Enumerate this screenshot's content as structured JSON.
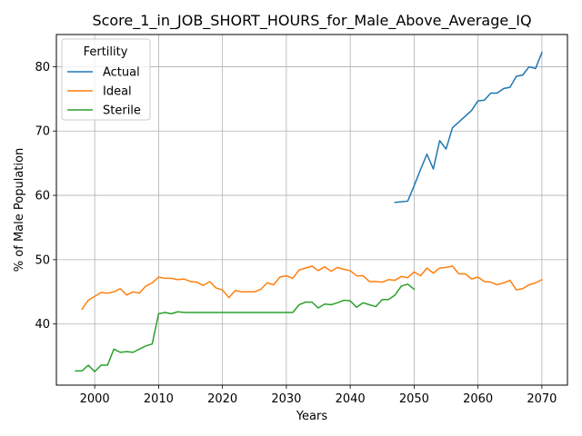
{
  "chart_data": {
    "type": "line",
    "title": "Score_1_in_JOB_SHORT_HOURS_for_Male_Above_Average_IQ",
    "xlabel": "Years",
    "ylabel": "% of Male Population",
    "xlim": [
      1994,
      2074
    ],
    "ylim": [
      30.5,
      85
    ],
    "xticks": [
      2000,
      2010,
      2020,
      2030,
      2040,
      2050,
      2060,
      2070
    ],
    "yticks": [
      40,
      50,
      60,
      70,
      80
    ],
    "grid": true,
    "legend": {
      "title": "Fertility",
      "placement": "top-left"
    },
    "series": [
      {
        "name": "Actual",
        "color": "#1f77b4",
        "x": [
          2047,
          2048,
          2049,
          2050,
          2051,
          2052,
          2053,
          2054,
          2055,
          2056,
          2057,
          2058,
          2059,
          2060,
          2061,
          2062,
          2063,
          2064,
          2065,
          2066,
          2067,
          2068,
          2069,
          2070
        ],
        "y": [
          58.9,
          59.0,
          59.1,
          61.5,
          64.0,
          66.4,
          64.1,
          68.5,
          67.2,
          70.5,
          71.4,
          72.3,
          73.2,
          74.7,
          74.8,
          75.9,
          75.9,
          76.6,
          76.8,
          78.5,
          78.7,
          80.0,
          79.7,
          82.2
        ]
      },
      {
        "name": "Ideal",
        "color": "#ff7f0e",
        "x": [
          1998,
          1999,
          2000,
          2001,
          2002,
          2003,
          2004,
          2005,
          2006,
          2007,
          2008,
          2009,
          2010,
          2011,
          2012,
          2013,
          2014,
          2015,
          2016,
          2017,
          2018,
          2019,
          2020,
          2021,
          2022,
          2023,
          2024,
          2025,
          2026,
          2027,
          2028,
          2029,
          2030,
          2031,
          2032,
          2033,
          2034,
          2035,
          2036,
          2037,
          2038,
          2039,
          2040,
          2041,
          2042,
          2043,
          2044,
          2045,
          2046,
          2047,
          2048,
          2049,
          2050,
          2051,
          2052,
          2053,
          2054,
          2055,
          2056,
          2057,
          2058,
          2059,
          2060,
          2061,
          2062,
          2063,
          2064,
          2065,
          2066,
          2067,
          2068,
          2069,
          2070
        ],
        "y": [
          42.3,
          43.7,
          44.3,
          44.9,
          44.8,
          45.0,
          45.5,
          44.5,
          45.0,
          44.8,
          45.9,
          46.4,
          47.3,
          47.1,
          47.1,
          46.9,
          47.0,
          46.6,
          46.5,
          46.0,
          46.6,
          45.6,
          45.3,
          44.1,
          45.2,
          45.0,
          45.0,
          45.0,
          45.4,
          46.4,
          46.1,
          47.3,
          47.5,
          47.1,
          48.4,
          48.7,
          49.0,
          48.3,
          48.9,
          48.2,
          48.8,
          48.5,
          48.3,
          47.5,
          47.5,
          46.6,
          46.6,
          46.5,
          46.9,
          46.8,
          47.4,
          47.2,
          48.1,
          47.5,
          48.7,
          47.9,
          48.7,
          48.8,
          49.0,
          47.8,
          47.8,
          47.0,
          47.3,
          46.6,
          46.5,
          46.1,
          46.4,
          46.8,
          45.3,
          45.5,
          46.1,
          46.4,
          46.9
        ]
      },
      {
        "name": "Sterile",
        "color": "#2ca02c",
        "x": [
          1997,
          1998,
          1999,
          2000,
          2001,
          2002,
          2003,
          2004,
          2005,
          2006,
          2007,
          2008,
          2009,
          2010,
          2011,
          2012,
          2013,
          2014,
          2015,
          2016,
          2017,
          2018,
          2019,
          2020,
          2021,
          2022,
          2023,
          2024,
          2025,
          2026,
          2027,
          2028,
          2029,
          2030,
          2031,
          2032,
          2033,
          2034,
          2035,
          2036,
          2037,
          2038,
          2039,
          2040,
          2041,
          2042,
          2043,
          2044,
          2045,
          2046,
          2047,
          2048,
          2049,
          2050
        ],
        "y": [
          32.7,
          32.7,
          33.6,
          32.6,
          33.6,
          33.6,
          36.1,
          35.6,
          35.7,
          35.6,
          36.1,
          36.6,
          36.9,
          41.6,
          41.8,
          41.6,
          41.9,
          41.8,
          41.8,
          41.8,
          41.8,
          41.8,
          41.8,
          41.8,
          41.8,
          41.8,
          41.8,
          41.8,
          41.8,
          41.8,
          41.8,
          41.8,
          41.8,
          41.8,
          41.8,
          43.0,
          43.4,
          43.4,
          42.5,
          43.1,
          43.0,
          43.3,
          43.7,
          43.6,
          42.6,
          43.3,
          43.0,
          42.7,
          43.8,
          43.8,
          44.5,
          45.9,
          46.2,
          45.4
        ]
      }
    ]
  }
}
